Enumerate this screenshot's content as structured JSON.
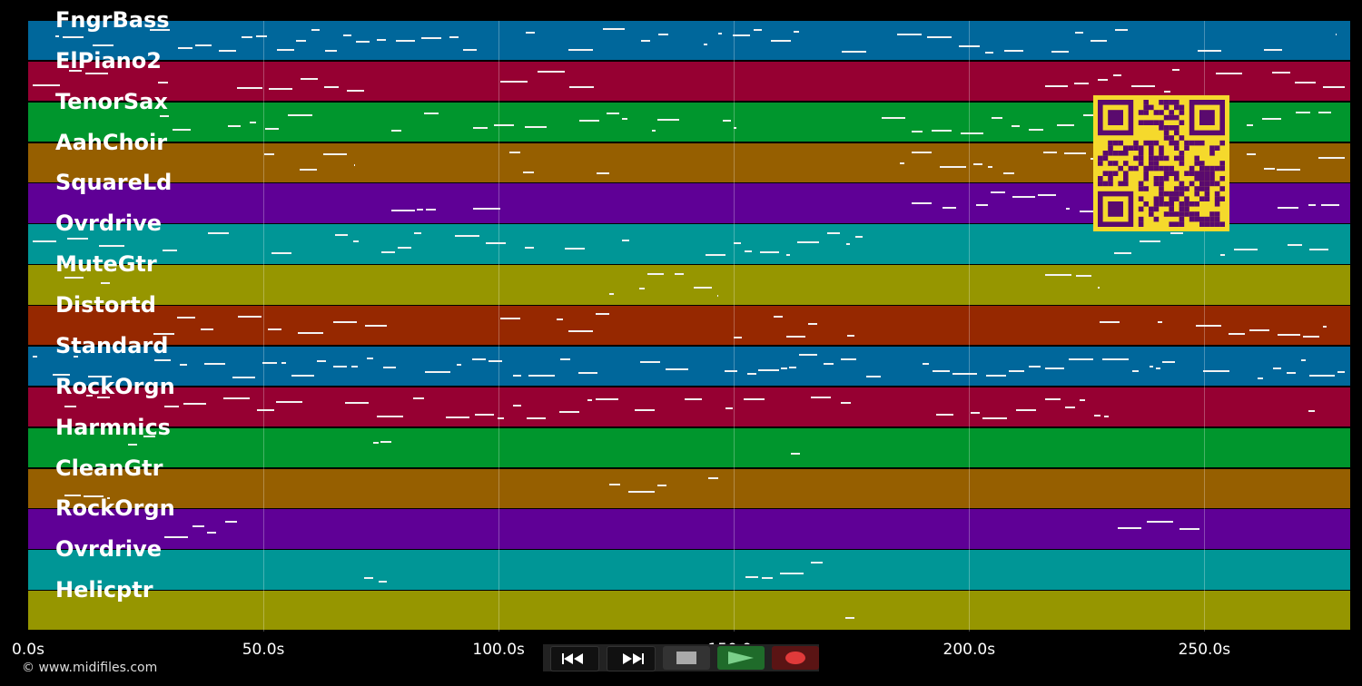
{
  "timeline": {
    "duration_s": 281,
    "ticks": [
      "0.0s",
      "50.0s",
      "100.0s",
      "150.0s",
      "200.0s",
      "250.0s"
    ],
    "tick_values_s": [
      0,
      50,
      100,
      150,
      200,
      250
    ]
  },
  "tracks": [
    {
      "name": "FngrBass",
      "color": "#00679b"
    },
    {
      "name": "ElPiano2",
      "color": "#960032"
    },
    {
      "name": "TenorSax",
      "color": "#00962d"
    },
    {
      "name": "AahChoir",
      "color": "#965f00"
    },
    {
      "name": "SquareLd",
      "color": "#5f0096"
    },
    {
      "name": "Ovrdrive",
      "color": "#009696"
    },
    {
      "name": "MuteGtr",
      "color": "#969600"
    },
    {
      "name": "Distortd",
      "color": "#962800"
    },
    {
      "name": "Standard",
      "color": "#00679b"
    },
    {
      "name": "RockOrgn",
      "color": "#960032"
    },
    {
      "name": "Harmnics",
      "color": "#00962d"
    },
    {
      "name": "CleanGtr",
      "color": "#965f00"
    },
    {
      "name": "RockOrgn",
      "color": "#5f0096"
    },
    {
      "name": "Ovrdrive",
      "color": "#009696"
    },
    {
      "name": "Helicptr",
      "color": "#969600"
    }
  ],
  "transport": {
    "rewind_icon": "rewind-icon",
    "ffwd_icon": "fast-forward-icon",
    "stop_icon": "stop-icon",
    "play_icon": "play-icon",
    "record_icon": "record-icon"
  },
  "copyright": "© www.midifiles.com",
  "qr_code": {
    "icon": "qr-code-icon",
    "color": "#f5d92c",
    "ink": "#5a0a6e"
  }
}
